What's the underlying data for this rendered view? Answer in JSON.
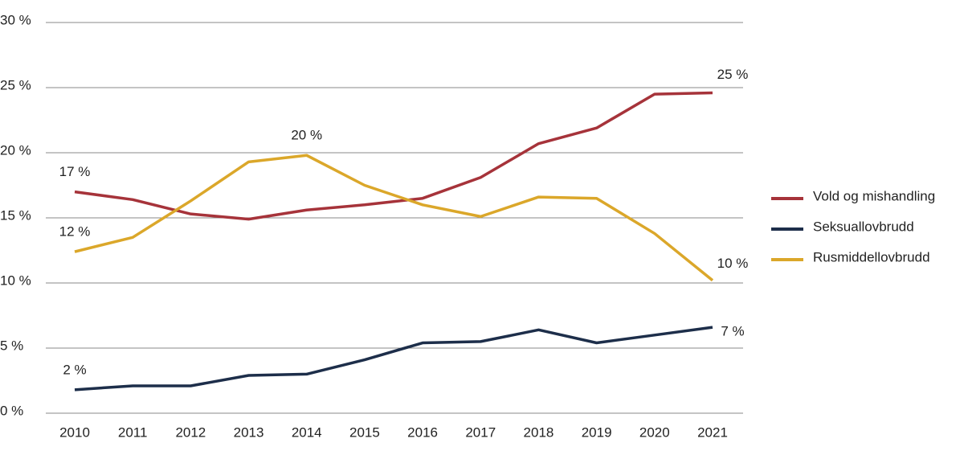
{
  "chart_data": {
    "type": "line",
    "x": [
      2010,
      2011,
      2012,
      2013,
      2014,
      2015,
      2016,
      2017,
      2018,
      2019,
      2020,
      2021
    ],
    "series": [
      {
        "name": "Vold og mishandling",
        "color": "#a6333a",
        "values": [
          17.0,
          16.4,
          15.3,
          14.9,
          15.6,
          16.0,
          16.5,
          18.1,
          20.7,
          21.9,
          24.5,
          24.6
        ],
        "value_labels": [
          "17 %",
          null,
          null,
          null,
          null,
          null,
          null,
          null,
          null,
          null,
          null,
          "25 %"
        ]
      },
      {
        "name": "Seksuallovbrudd",
        "color": "#1d2e4a",
        "values": [
          1.8,
          2.1,
          2.1,
          2.9,
          3.0,
          4.1,
          5.4,
          5.5,
          6.4,
          5.4,
          6.0,
          6.6
        ],
        "value_labels": [
          "2 %",
          null,
          null,
          null,
          null,
          null,
          null,
          null,
          null,
          null,
          null,
          "7 %"
        ]
      },
      {
        "name": "Rusmiddellovbrudd",
        "color": "#dba72a",
        "values": [
          12.4,
          13.5,
          16.3,
          19.3,
          19.8,
          17.5,
          16.0,
          15.1,
          16.6,
          16.5,
          13.8,
          10.2
        ],
        "value_labels": [
          "12 %",
          null,
          null,
          null,
          "20 %",
          null,
          null,
          null,
          null,
          null,
          null,
          "10 %"
        ]
      }
    ],
    "ylim": [
      0,
      30
    ],
    "yticks": [
      {
        "value": 0,
        "label": "0 %"
      },
      {
        "value": 5,
        "label": "5 %"
      },
      {
        "value": 10,
        "label": "10 %"
      },
      {
        "value": 15,
        "label": "15 %"
      },
      {
        "value": 20,
        "label": "20 %"
      },
      {
        "value": 25,
        "label": "25 %"
      },
      {
        "value": 30,
        "label": "30 %"
      }
    ],
    "grid": true,
    "legend": "right"
  }
}
